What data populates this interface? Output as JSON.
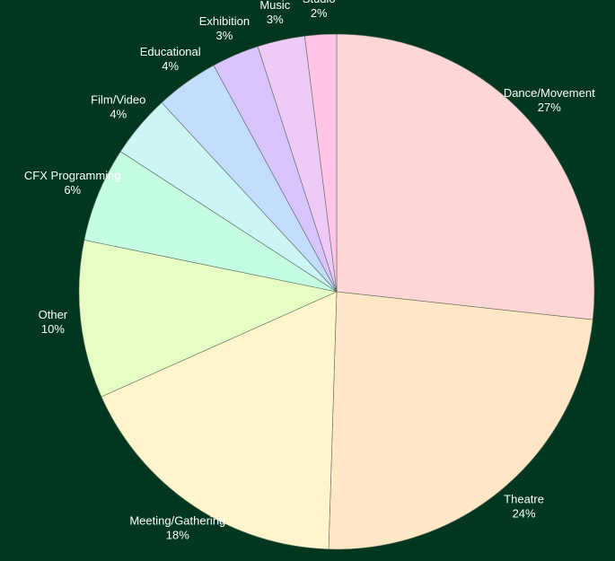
{
  "chart_data": {
    "type": "pie",
    "categories": [
      "Dance/Movement",
      "Theatre",
      "Meeting/Gathering",
      "Other",
      "CFX Programming",
      "Film/Video",
      "Educational",
      "Exhibition",
      "Music",
      "Studio"
    ],
    "values": [
      27,
      24,
      18,
      10,
      6,
      4,
      4,
      3,
      3,
      2
    ],
    "value_labels": [
      "27%",
      "24%",
      "18%",
      "10%",
      "6%",
      "4%",
      "4%",
      "3%",
      "3%",
      "2%"
    ],
    "colors": [
      "#ffd6d6",
      "#ffe6c4",
      "#fff5cc",
      "#e6fdc4",
      "#c4fde1",
      "#ccf5f5",
      "#c4dcfd",
      "#d9c4fd",
      "#eecbf7",
      "#ffc4e6"
    ]
  }
}
